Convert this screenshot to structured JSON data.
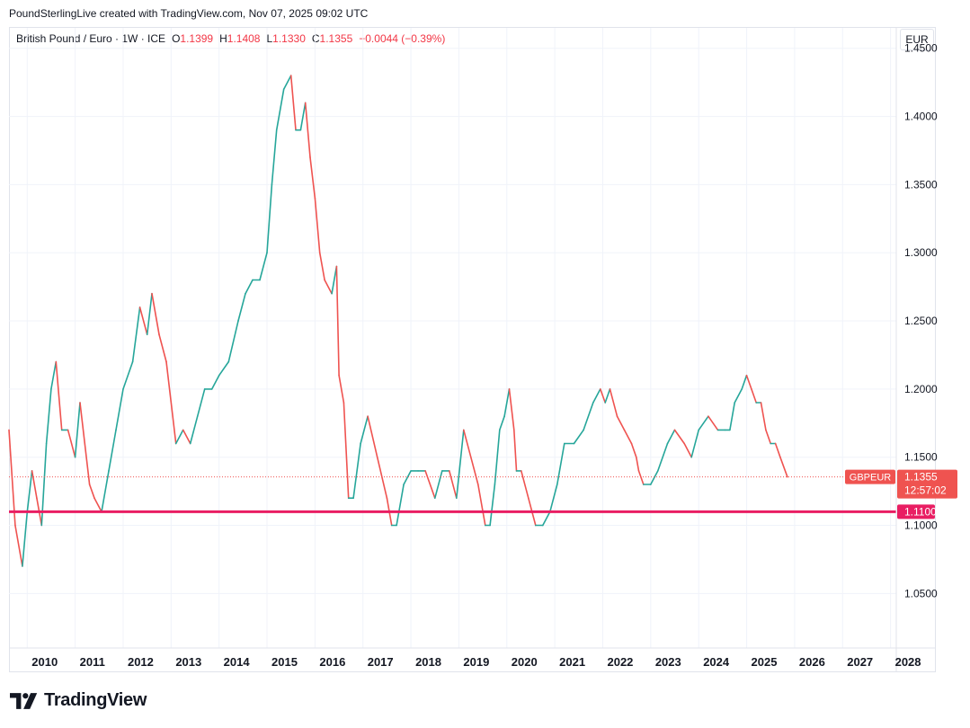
{
  "header": {
    "attribution": "PoundSterlingLive created with TradingView.com, Nov 07, 2025 09:02 UTC"
  },
  "legend": {
    "symbol": "British Pound / Euro · 1W · ICE",
    "open_label": "O",
    "open": "1.1399",
    "high_label": "H",
    "high": "1.1408",
    "low_label": "L",
    "low": "1.1330",
    "close_label": "C",
    "close": "1.1355",
    "change": "−0.0044 (−0.39%)"
  },
  "price_scale": {
    "unit": "EUR"
  },
  "last_price": {
    "symbol": "GBPEUR",
    "value": "1.1355",
    "countdown": "12:57:02"
  },
  "horizontal_line": {
    "value": 1.11,
    "label": "1.1100"
  },
  "brand": {
    "name": "TradingView",
    "logo_icon": "tradingview-logo-icon"
  },
  "colors": {
    "up": "#26a69a",
    "down": "#ef5350",
    "hline": "#e91e63",
    "last": "#ef5350"
  },
  "chart_data": {
    "type": "line",
    "title": "",
    "xlabel": "",
    "ylabel": "",
    "x_ticks": [
      "2010",
      "2011",
      "2012",
      "2013",
      "2014",
      "2015",
      "2016",
      "2017",
      "2018",
      "2019",
      "2020",
      "2021",
      "2022",
      "2023",
      "2024",
      "2025",
      "2026",
      "2027",
      "2028"
    ],
    "y_ticks": [
      "1.4500",
      "1.4000",
      "1.3500",
      "1.3000",
      "1.2500",
      "1.2000",
      "1.1500",
      "1.1000",
      "1.0500"
    ],
    "xlim": [
      2009.62,
      2028.12
    ],
    "ylim": [
      1.01,
      1.465
    ],
    "grid": true,
    "series": [
      {
        "x": [
          2009.62,
          2009.75,
          2009.9,
          2010.0,
          2010.1,
          2010.2,
          2010.3,
          2010.4,
          2010.5,
          2010.6,
          2010.72,
          2010.85,
          2011.0,
          2011.1,
          2011.2,
          2011.3,
          2011.4,
          2011.55,
          2011.7,
          2011.85,
          2012.0,
          2012.2,
          2012.35,
          2012.5,
          2012.6,
          2012.75,
          2012.9,
          2013.1,
          2013.25,
          2013.4,
          2013.55,
          2013.7,
          2013.85,
          2014.0,
          2014.2,
          2014.4,
          2014.55,
          2014.7,
          2014.85,
          2015.0,
          2015.1,
          2015.2,
          2015.35,
          2015.5,
          2015.6,
          2015.7,
          2015.8,
          2015.9,
          2016.0,
          2016.1,
          2016.2,
          2016.35,
          2016.45,
          2016.5,
          2016.6,
          2016.7,
          2016.8,
          2016.95,
          2017.1,
          2017.3,
          2017.5,
          2017.6,
          2017.7,
          2017.85,
          2018.0,
          2018.15,
          2018.3,
          2018.5,
          2018.65,
          2018.8,
          2018.95,
          2019.1,
          2019.25,
          2019.4,
          2019.55,
          2019.65,
          2019.75,
          2019.85,
          2019.95,
          2020.05,
          2020.15,
          2020.2,
          2020.3,
          2020.45,
          2020.6,
          2020.75,
          2020.9,
          2021.05,
          2021.2,
          2021.4,
          2021.6,
          2021.8,
          2021.95,
          2022.05,
          2022.15,
          2022.3,
          2022.45,
          2022.6,
          2022.7,
          2022.75,
          2022.85,
          2023.0,
          2023.15,
          2023.35,
          2023.5,
          2023.7,
          2023.85,
          2024.0,
          2024.2,
          2024.4,
          2024.55,
          2024.65,
          2024.75,
          2024.9,
          2025.0,
          2025.1,
          2025.2,
          2025.3,
          2025.4,
          2025.5,
          2025.6,
          2025.7,
          2025.85
        ],
        "y": [
          1.17,
          1.1,
          1.07,
          1.11,
          1.14,
          1.12,
          1.1,
          1.16,
          1.2,
          1.22,
          1.17,
          1.17,
          1.15,
          1.19,
          1.16,
          1.13,
          1.12,
          1.11,
          1.14,
          1.17,
          1.2,
          1.22,
          1.26,
          1.24,
          1.27,
          1.24,
          1.22,
          1.16,
          1.17,
          1.16,
          1.18,
          1.2,
          1.2,
          1.21,
          1.22,
          1.25,
          1.27,
          1.28,
          1.28,
          1.3,
          1.35,
          1.39,
          1.42,
          1.43,
          1.39,
          1.39,
          1.41,
          1.37,
          1.34,
          1.3,
          1.28,
          1.27,
          1.29,
          1.21,
          1.19,
          1.12,
          1.12,
          1.16,
          1.18,
          1.15,
          1.12,
          1.1,
          1.1,
          1.13,
          1.14,
          1.14,
          1.14,
          1.12,
          1.14,
          1.14,
          1.12,
          1.17,
          1.15,
          1.13,
          1.1,
          1.1,
          1.13,
          1.17,
          1.18,
          1.2,
          1.17,
          1.14,
          1.14,
          1.12,
          1.1,
          1.1,
          1.11,
          1.13,
          1.16,
          1.16,
          1.17,
          1.19,
          1.2,
          1.19,
          1.2,
          1.18,
          1.17,
          1.16,
          1.15,
          1.14,
          1.13,
          1.13,
          1.14,
          1.16,
          1.17,
          1.16,
          1.15,
          1.17,
          1.18,
          1.17,
          1.17,
          1.17,
          1.19,
          1.2,
          1.21,
          1.2,
          1.19,
          1.19,
          1.17,
          1.16,
          1.16,
          1.15,
          1.1355
        ]
      }
    ]
  }
}
